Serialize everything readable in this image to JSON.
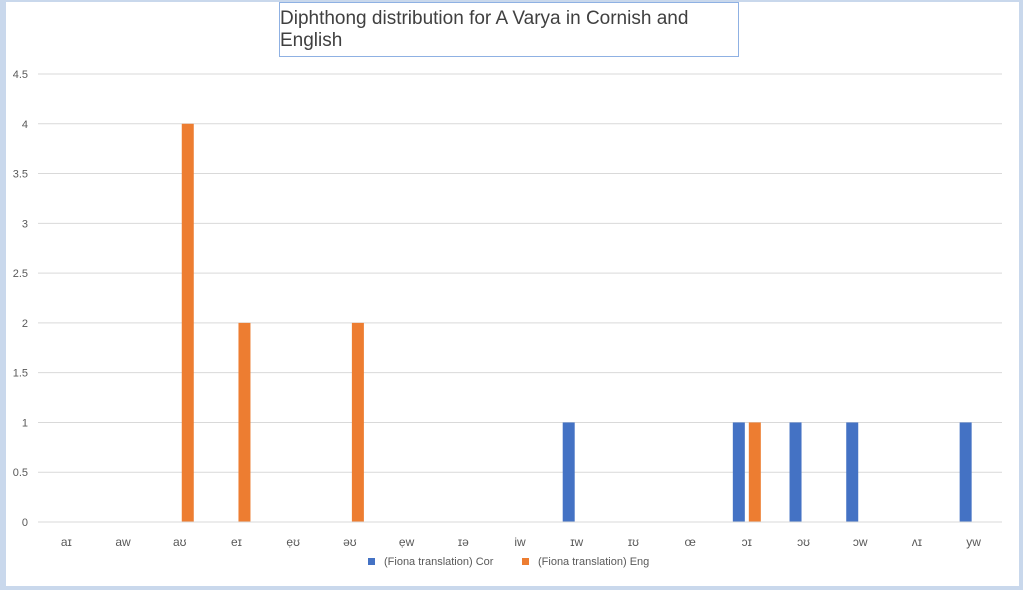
{
  "chart_data": {
    "type": "bar",
    "title": "Diphthong distribution for A Varya in Cornish and English",
    "xlabel": "",
    "ylabel": "",
    "ylim": [
      0,
      4.5
    ],
    "yticks": [
      "0",
      "0.5",
      "1",
      "1.5",
      "2",
      "2.5",
      "3",
      "3.5",
      "4",
      "4.5"
    ],
    "ytick_values": [
      0,
      0.5,
      1,
      1.5,
      2,
      2.5,
      3,
      3.5,
      4,
      4.5
    ],
    "grid": true,
    "legend_position": "bottom",
    "categories": [
      "aɪ",
      "aw",
      "aʊ",
      "eɪ",
      "ẹʊ",
      "əʊ",
      "ẹw",
      "ɪə",
      "iw",
      "ɪw",
      "ɪʊ",
      "œ",
      "ɔɪ",
      "ɔʊ",
      "ɔw",
      "ʌɪ",
      "yw"
    ],
    "series": [
      {
        "name": "(Fiona translation) Cor",
        "color": "#4472c4",
        "values": [
          0,
          0,
          0,
          0,
          0,
          0,
          0,
          0,
          0,
          1,
          0,
          0,
          1,
          1,
          1,
          0,
          1
        ]
      },
      {
        "name": "(Fiona translation) Eng",
        "color": "#ed7d31",
        "values": [
          0,
          0,
          4,
          2,
          0,
          2,
          0,
          0,
          0,
          0,
          0,
          0,
          1,
          0,
          0,
          0,
          0
        ]
      }
    ]
  }
}
